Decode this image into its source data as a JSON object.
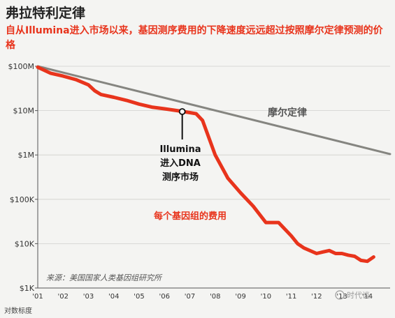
{
  "header": {
    "title": "弗拉特利定律",
    "subtitle": "自从Illumina进入市场以来，基因测序费用的下降速度远远超过按照摩尔定律预测的价格"
  },
  "watermark": "时代谈",
  "chart_data": {
    "type": "line",
    "yscale": "log",
    "ylim": [
      1000,
      100000000
    ],
    "xlim": [
      2001,
      2014.9
    ],
    "y_ticks": [
      {
        "value": 100000000,
        "label": "$100M"
      },
      {
        "value": 10000000,
        "label": "$10M"
      },
      {
        "value": 1000000,
        "label": "$1M"
      },
      {
        "value": 100000,
        "label": "$100K"
      },
      {
        "value": 10000,
        "label": "$10K"
      },
      {
        "value": 1000,
        "label": "$1K"
      }
    ],
    "x_ticks": [
      {
        "value": 2001,
        "label": "'01"
      },
      {
        "value": 2002,
        "label": "'02"
      },
      {
        "value": 2003,
        "label": "'03"
      },
      {
        "value": 2004,
        "label": "'04"
      },
      {
        "value": 2005,
        "label": "'05"
      },
      {
        "value": 2006,
        "label": "'06"
      },
      {
        "value": 2007,
        "label": "'07"
      },
      {
        "value": 2008,
        "label": "'08"
      },
      {
        "value": 2009,
        "label": "'09"
      },
      {
        "value": 2010,
        "label": "'10"
      },
      {
        "value": 2011,
        "label": "'11"
      },
      {
        "value": 2012,
        "label": "'12"
      },
      {
        "value": 2013,
        "label": "'13"
      },
      {
        "value": 2014,
        "label": "'14"
      }
    ],
    "ylabel_note": "对数标度",
    "source": "来源：美国国家人类基因组研究所",
    "series": [
      {
        "name": "每个基因组的费用",
        "color": "#e8341c",
        "x": [
          2001.0,
          2001.5,
          2002.0,
          2002.5,
          2003.0,
          2003.25,
          2003.5,
          2004.0,
          2004.5,
          2005.0,
          2005.5,
          2006.0,
          2006.5,
          2006.75,
          2007.0,
          2007.25,
          2007.5,
          2008.0,
          2008.5,
          2009.0,
          2009.5,
          2010.0,
          2010.5,
          2011.0,
          2011.25,
          2011.5,
          2012.0,
          2012.25,
          2012.5,
          2012.75,
          2013.0,
          2013.25,
          2013.5,
          2013.75,
          2014.0,
          2014.25
        ],
        "values": [
          95000000,
          70000000,
          60000000,
          50000000,
          38000000,
          28000000,
          23000000,
          20000000,
          17000000,
          14000000,
          12000000,
          11000000,
          10000000,
          9500000,
          9000000,
          8500000,
          6000000,
          1000000,
          300000,
          140000,
          70000,
          30000,
          30000,
          15000,
          10000,
          8000,
          6000,
          6500,
          7000,
          6000,
          6000,
          5500,
          5200,
          4200,
          4000,
          5000
        ]
      },
      {
        "name": "摩尔定律",
        "color": "#858580",
        "x": [
          2001,
          2014.9
        ],
        "values": [
          100000000,
          1050000
        ]
      }
    ],
    "annotations": {
      "illumina_lines": [
        "Illumina",
        "进入DNA",
        "测序市场"
      ],
      "illumina_point": {
        "x": 2006.7,
        "value": 9500000
      },
      "moore_label": "摩尔定律",
      "cost_label": "每个基因组的费用"
    }
  }
}
